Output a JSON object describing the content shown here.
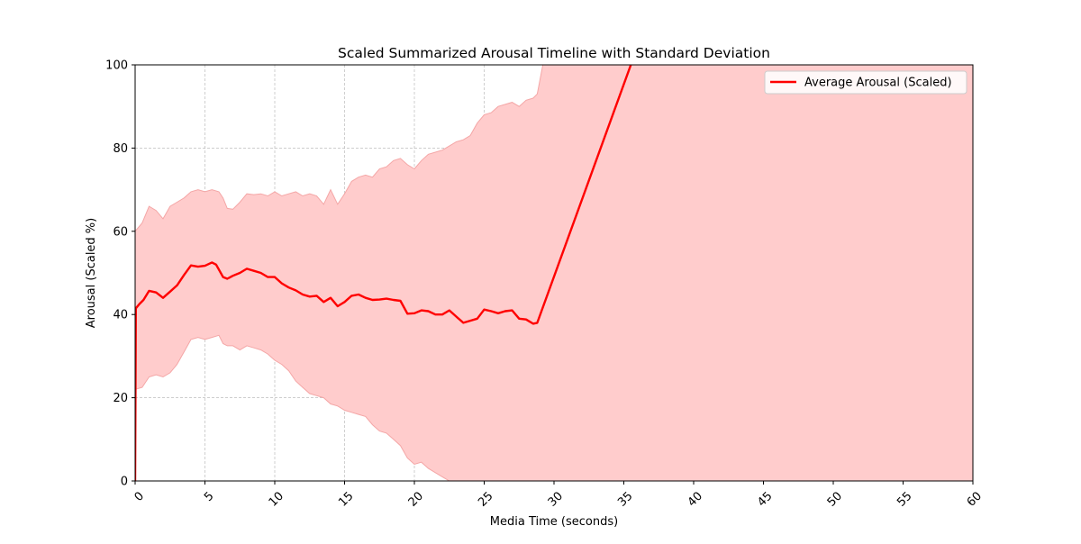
{
  "chart_data": {
    "type": "line",
    "title": "Scaled Summarized Arousal Timeline with Standard Deviation",
    "xlabel": "Media Time (seconds)",
    "ylabel": "Arousal (Scaled %)",
    "xlim": [
      0,
      60
    ],
    "ylim": [
      0,
      100
    ],
    "xticks": [
      0,
      5,
      10,
      15,
      20,
      25,
      30,
      35,
      40,
      45,
      50,
      55,
      60
    ],
    "yticks": [
      0,
      20,
      40,
      60,
      80,
      100
    ],
    "grid": true,
    "legend_position": "top-right",
    "line_color": "#ff0000",
    "band_color": "#ffcccc",
    "band_edge_color": "#f4a6a6",
    "series": [
      {
        "name": "Average Arousal (Scaled)",
        "x": [
          0,
          0.05,
          0.3,
          0.6,
          1.0,
          1.5,
          2.0,
          2.5,
          3.0,
          3.5,
          4.0,
          4.5,
          5.0,
          5.5,
          5.8,
          6.3,
          6.6,
          7.0,
          7.5,
          8.0,
          8.5,
          9.0,
          9.5,
          10.0,
          10.5,
          11.0,
          11.5,
          12.0,
          12.5,
          13.0,
          13.5,
          14.0,
          14.5,
          15.0,
          15.5,
          16.0,
          16.5,
          17.0,
          17.5,
          18.0,
          18.5,
          19.0,
          19.5,
          20.0,
          20.5,
          21.0,
          21.5,
          22.0,
          22.5,
          23.0,
          23.5,
          24.0,
          24.5,
          25.0,
          25.5,
          26.0,
          26.5,
          27.0,
          27.5,
          28.0,
          28.5,
          28.8,
          35.5
        ],
        "mean": [
          0,
          41.5,
          42.5,
          43.5,
          45.7,
          45.3,
          44.0,
          45.5,
          47.0,
          49.5,
          51.8,
          51.5,
          51.7,
          52.5,
          52.0,
          49.0,
          48.6,
          49.3,
          50.0,
          51.0,
          50.5,
          50.0,
          49.0,
          49.0,
          47.5,
          46.5,
          45.8,
          44.8,
          44.3,
          44.5,
          43.0,
          44.0,
          42.0,
          43.0,
          44.5,
          44.8,
          44.0,
          43.5,
          43.6,
          43.8,
          43.5,
          43.3,
          40.2,
          40.3,
          41.0,
          40.8,
          40.0,
          40.0,
          41.0,
          39.5,
          38.0,
          38.5,
          39.0,
          41.2,
          40.8,
          40.3,
          40.8,
          41.0,
          39.0,
          38.8,
          37.8,
          38.0,
          100
        ]
      }
    ],
    "band": {
      "upper": [
        [
          0,
          60
        ],
        [
          0.5,
          62
        ],
        [
          1.0,
          66
        ],
        [
          1.5,
          65
        ],
        [
          2.0,
          63
        ],
        [
          2.5,
          66
        ],
        [
          3.0,
          67
        ],
        [
          3.5,
          68
        ],
        [
          4.0,
          69.5
        ],
        [
          4.5,
          70
        ],
        [
          5.0,
          69.5
        ],
        [
          5.5,
          70
        ],
        [
          6.0,
          69.5
        ],
        [
          6.3,
          68
        ],
        [
          6.6,
          65.5
        ],
        [
          7.0,
          65.3
        ],
        [
          7.5,
          67
        ],
        [
          8.0,
          69
        ],
        [
          8.5,
          68.8
        ],
        [
          9.0,
          69
        ],
        [
          9.5,
          68.5
        ],
        [
          10.0,
          69.5
        ],
        [
          10.5,
          68.5
        ],
        [
          11.0,
          69
        ],
        [
          11.5,
          69.5
        ],
        [
          12.0,
          68.5
        ],
        [
          12.5,
          69
        ],
        [
          13.0,
          68.5
        ],
        [
          13.5,
          66.5
        ],
        [
          14.0,
          70
        ],
        [
          14.5,
          66.5
        ],
        [
          15.0,
          69
        ],
        [
          15.5,
          72
        ],
        [
          16.0,
          73
        ],
        [
          16.5,
          73.5
        ],
        [
          17.0,
          73
        ],
        [
          17.5,
          75
        ],
        [
          18.0,
          75.5
        ],
        [
          18.5,
          77
        ],
        [
          19.0,
          77.5
        ],
        [
          19.5,
          76
        ],
        [
          20.0,
          75
        ],
        [
          20.5,
          77
        ],
        [
          21.0,
          78.5
        ],
        [
          21.5,
          79
        ],
        [
          22.0,
          79.5
        ],
        [
          22.5,
          80.5
        ],
        [
          23.0,
          81.5
        ],
        [
          23.5,
          82
        ],
        [
          24.0,
          83
        ],
        [
          24.5,
          86
        ],
        [
          25.0,
          88
        ],
        [
          25.5,
          88.5
        ],
        [
          26.0,
          90
        ],
        [
          26.5,
          90.5
        ],
        [
          27.0,
          91
        ],
        [
          27.5,
          90
        ],
        [
          28.0,
          91.5
        ],
        [
          28.5,
          92
        ],
        [
          28.8,
          93
        ],
        [
          29.2,
          100
        ],
        [
          60,
          100
        ]
      ],
      "lower": [
        [
          0,
          22
        ],
        [
          0.5,
          22.5
        ],
        [
          1.0,
          25
        ],
        [
          1.5,
          25.5
        ],
        [
          2.0,
          25
        ],
        [
          2.5,
          26
        ],
        [
          3.0,
          28
        ],
        [
          3.5,
          31
        ],
        [
          4.0,
          34
        ],
        [
          4.5,
          34.5
        ],
        [
          5.0,
          34
        ],
        [
          5.5,
          34.5
        ],
        [
          6.0,
          35
        ],
        [
          6.3,
          33
        ],
        [
          6.6,
          32.5
        ],
        [
          7.0,
          32.5
        ],
        [
          7.5,
          31.5
        ],
        [
          8.0,
          32.5
        ],
        [
          8.5,
          32
        ],
        [
          9.0,
          31.5
        ],
        [
          9.5,
          30.5
        ],
        [
          10.0,
          29
        ],
        [
          10.5,
          28
        ],
        [
          11.0,
          26.5
        ],
        [
          11.5,
          24
        ],
        [
          12.0,
          22.5
        ],
        [
          12.5,
          21
        ],
        [
          13.0,
          20.5
        ],
        [
          13.5,
          20
        ],
        [
          14.0,
          18.5
        ],
        [
          14.5,
          18
        ],
        [
          15.0,
          17
        ],
        [
          15.5,
          16.5
        ],
        [
          16.0,
          16
        ],
        [
          16.5,
          15.5
        ],
        [
          17.0,
          13.5
        ],
        [
          17.5,
          12
        ],
        [
          18.0,
          11.5
        ],
        [
          18.5,
          10
        ],
        [
          19.0,
          8.5
        ],
        [
          19.5,
          5.5
        ],
        [
          20.0,
          4
        ],
        [
          20.5,
          4.5
        ],
        [
          21.0,
          3
        ],
        [
          21.5,
          2
        ],
        [
          22.0,
          1
        ],
        [
          22.5,
          0
        ],
        [
          60,
          0
        ]
      ]
    }
  }
}
